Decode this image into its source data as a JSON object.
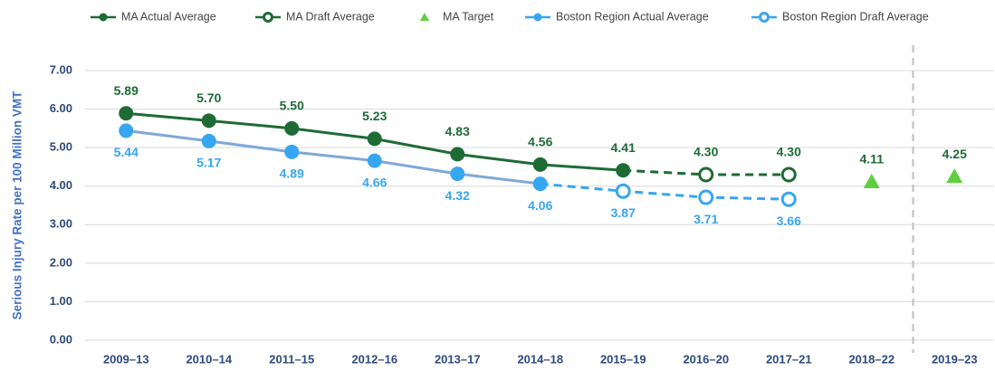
{
  "chart_data": {
    "type": "line",
    "y_label": "Serious Injury Rate per 100 Million VMT",
    "categories": [
      "2009–13",
      "2010–14",
      "2011–15",
      "2012–16",
      "2013–17",
      "2014–18",
      "2015–19",
      "2016–20",
      "2017–21",
      "2018–22",
      "2019–23"
    ],
    "series": [
      {
        "name": "MA Actual Average",
        "color": "#1e6b35",
        "marker": "circle",
        "dashed": false,
        "label_position": "above",
        "values": [
          5.89,
          5.7,
          5.5,
          5.23,
          4.83,
          4.56,
          4.41,
          null,
          null,
          null,
          null
        ],
        "value_labels": [
          "5.89",
          "5.70",
          "5.50",
          "5.23",
          "4.83",
          "4.56",
          "4.41",
          null,
          null,
          null,
          null
        ]
      },
      {
        "name": "MA Draft Average",
        "color": "#1e6b35",
        "marker": "open-circle",
        "dashed": true,
        "label_position": "above",
        "values": [
          null,
          null,
          null,
          null,
          null,
          null,
          4.41,
          4.3,
          4.3,
          null,
          null
        ],
        "value_labels": [
          null,
          null,
          null,
          null,
          null,
          null,
          null,
          "4.30",
          "4.30",
          null,
          null
        ]
      },
      {
        "name": "MA Target",
        "color": "#5fcf3f",
        "marker": "triangle",
        "line": false,
        "label_position": "above",
        "values": [
          null,
          null,
          null,
          null,
          null,
          null,
          null,
          null,
          null,
          4.11,
          4.25
        ],
        "value_labels": [
          null,
          null,
          null,
          null,
          null,
          null,
          null,
          null,
          null,
          "4.11",
          "4.25"
        ]
      },
      {
        "name": "Boston Region Actual Average",
        "color": "#37a6f0",
        "line_color": "#7fa8d8",
        "marker": "circle",
        "dashed": false,
        "label_position": "below",
        "values": [
          5.44,
          5.17,
          4.89,
          4.66,
          4.32,
          4.06,
          null,
          null,
          null,
          null,
          null
        ],
        "value_labels": [
          "5.44",
          "5.17",
          "4.89",
          "4.66",
          "4.32",
          "4.06",
          null,
          null,
          null,
          null,
          null
        ]
      },
      {
        "name": "Boston Region Draft Average",
        "color": "#37a6f0",
        "marker": "open-circle",
        "dashed": true,
        "label_position": "below",
        "values": [
          null,
          null,
          null,
          null,
          null,
          4.06,
          3.87,
          3.71,
          3.66,
          null,
          null
        ],
        "value_labels": [
          null,
          null,
          null,
          null,
          null,
          null,
          "3.87",
          "3.71",
          "3.66",
          null,
          null
        ]
      }
    ],
    "ylim": [
      0,
      7
    ],
    "yticks": [
      {
        "value": 0,
        "label": "0.00"
      },
      {
        "value": 1,
        "label": "1.00"
      },
      {
        "value": 2,
        "label": "2.00"
      },
      {
        "value": 3,
        "label": "3.00"
      },
      {
        "value": 4,
        "label": "4.00"
      },
      {
        "value": 5,
        "label": "5.00"
      },
      {
        "value": 6,
        "label": "6.00"
      },
      {
        "value": 7,
        "label": "7.00"
      }
    ],
    "grid": true,
    "legend": "top"
  }
}
